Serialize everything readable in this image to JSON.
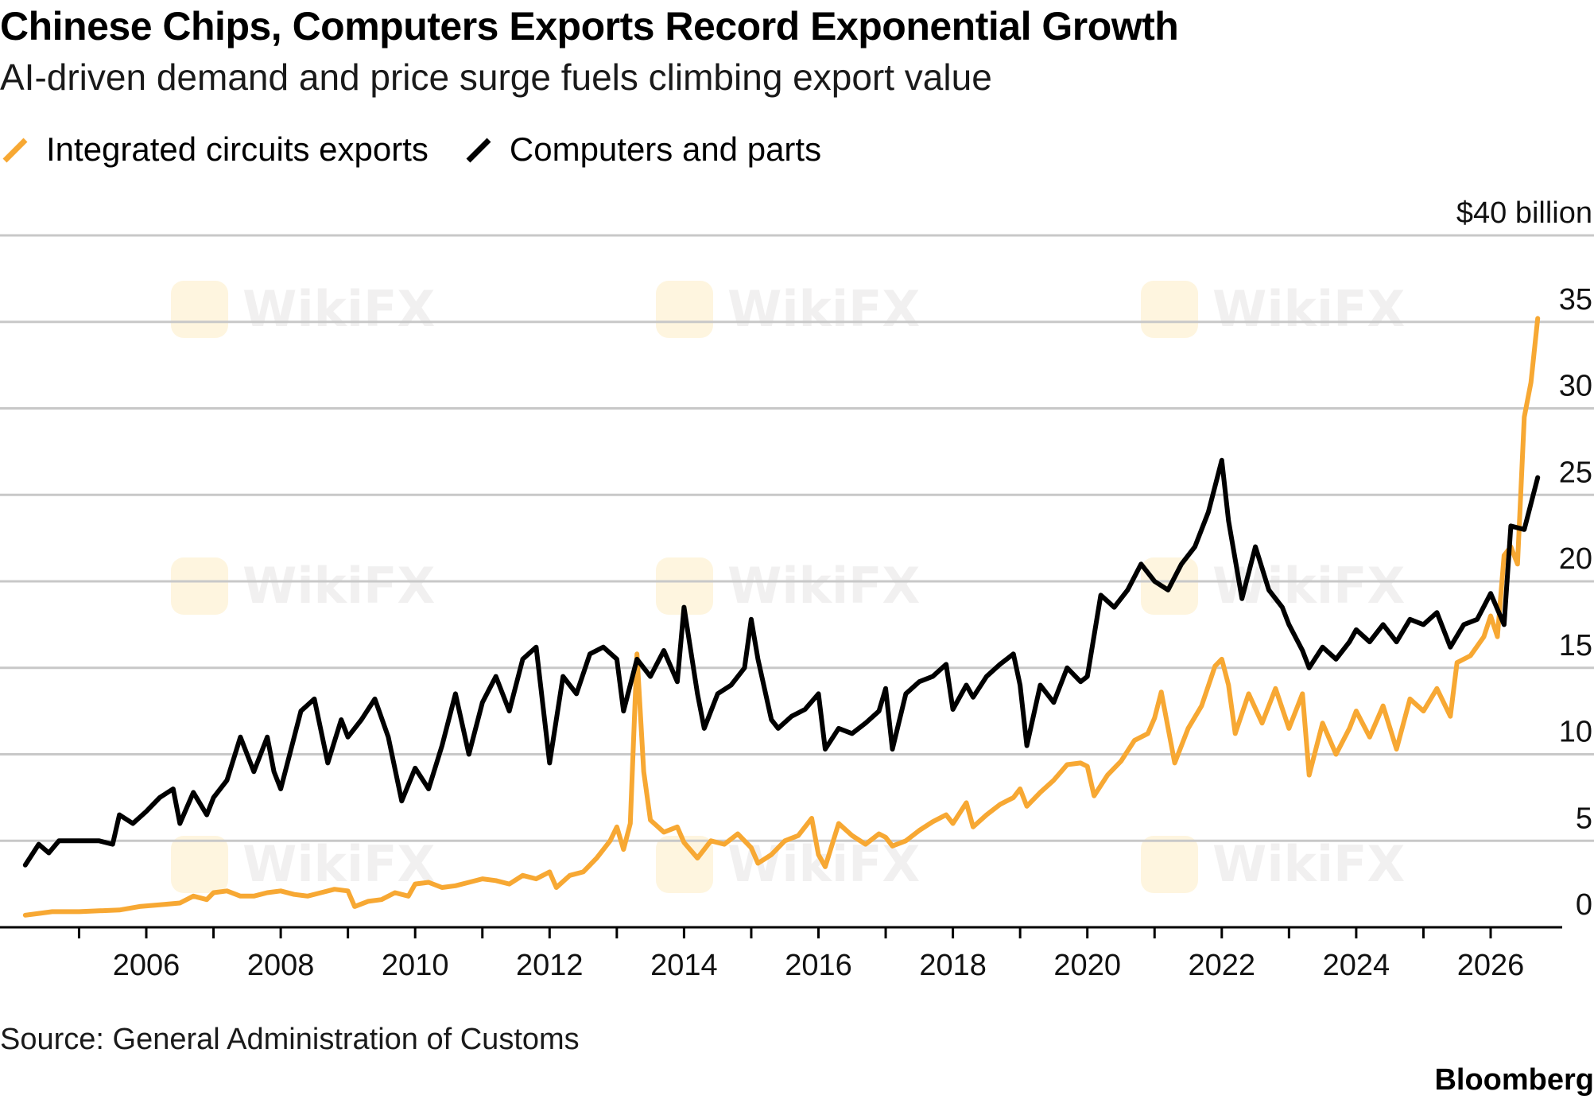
{
  "header": {
    "title": "Chinese Chips, Computers Exports Record Exponential Growth",
    "subtitle": "AI-driven demand and price surge fuels climbing export value"
  },
  "legend": [
    {
      "label": "Integrated circuits exports",
      "color": "#f7a833"
    },
    {
      "label": "Computers and parts",
      "color": "#000000"
    }
  ],
  "footer": {
    "source": "Source: General Administration of Customs",
    "brand": "Bloomberg"
  },
  "watermark": {
    "text": "WikiFX"
  },
  "chart_data": {
    "type": "line",
    "xlim": [
      2004.0,
      2027.0
    ],
    "ylim": [
      0,
      40
    ],
    "y_ticks": [
      0,
      5,
      10,
      15,
      20,
      25,
      30,
      35,
      40
    ],
    "y_tick_labels": [
      "0",
      "5",
      "10",
      "15",
      "20",
      "25",
      "30",
      "35",
      "$40 billion"
    ],
    "x_tick_labels": [
      "2006",
      "2008",
      "2010",
      "2012",
      "2014",
      "2016",
      "2018",
      "2020",
      "2022",
      "2024",
      "2026"
    ],
    "x_tick_years": [
      2006,
      2008,
      2010,
      2012,
      2014,
      2016,
      2018,
      2020,
      2022,
      2024,
      2026
    ],
    "grid": "horizontal",
    "legend_position": "top-left",
    "series": [
      {
        "name": "Integrated circuits exports",
        "color": "#f7a833",
        "points": [
          [
            2004.2,
            0.7
          ],
          [
            2004.4,
            0.8
          ],
          [
            2004.6,
            0.9
          ],
          [
            2004.8,
            0.9
          ],
          [
            2005.0,
            0.9
          ],
          [
            2005.3,
            0.95
          ],
          [
            2005.6,
            1.0
          ],
          [
            2005.9,
            1.2
          ],
          [
            2006.2,
            1.3
          ],
          [
            2006.5,
            1.4
          ],
          [
            2006.7,
            1.8
          ],
          [
            2006.9,
            1.6
          ],
          [
            2007.0,
            2.0
          ],
          [
            2007.2,
            2.1
          ],
          [
            2007.4,
            1.8
          ],
          [
            2007.6,
            1.8
          ],
          [
            2007.8,
            2.0
          ],
          [
            2008.0,
            2.1
          ],
          [
            2008.2,
            1.9
          ],
          [
            2008.4,
            1.8
          ],
          [
            2008.6,
            2.0
          ],
          [
            2008.8,
            2.2
          ],
          [
            2009.0,
            2.1
          ],
          [
            2009.1,
            1.2
          ],
          [
            2009.3,
            1.5
          ],
          [
            2009.5,
            1.6
          ],
          [
            2009.7,
            2.0
          ],
          [
            2009.9,
            1.8
          ],
          [
            2010.0,
            2.5
          ],
          [
            2010.2,
            2.6
          ],
          [
            2010.4,
            2.3
          ],
          [
            2010.6,
            2.4
          ],
          [
            2010.8,
            2.6
          ],
          [
            2011.0,
            2.8
          ],
          [
            2011.2,
            2.7
          ],
          [
            2011.4,
            2.5
          ],
          [
            2011.6,
            3.0
          ],
          [
            2011.8,
            2.8
          ],
          [
            2012.0,
            3.2
          ],
          [
            2012.1,
            2.3
          ],
          [
            2012.3,
            3.0
          ],
          [
            2012.5,
            3.2
          ],
          [
            2012.7,
            4.0
          ],
          [
            2012.9,
            5.0
          ],
          [
            2013.0,
            5.8
          ],
          [
            2013.1,
            4.5
          ],
          [
            2013.2,
            6.0
          ],
          [
            2013.3,
            15.8
          ],
          [
            2013.4,
            9.0
          ],
          [
            2013.5,
            6.2
          ],
          [
            2013.7,
            5.5
          ],
          [
            2013.9,
            5.8
          ],
          [
            2014.0,
            4.9
          ],
          [
            2014.2,
            4.0
          ],
          [
            2014.4,
            5.0
          ],
          [
            2014.6,
            4.8
          ],
          [
            2014.8,
            5.4
          ],
          [
            2015.0,
            4.6
          ],
          [
            2015.1,
            3.7
          ],
          [
            2015.3,
            4.2
          ],
          [
            2015.5,
            5.0
          ],
          [
            2015.7,
            5.3
          ],
          [
            2015.9,
            6.3
          ],
          [
            2016.0,
            4.2
          ],
          [
            2016.1,
            3.5
          ],
          [
            2016.3,
            6.0
          ],
          [
            2016.5,
            5.3
          ],
          [
            2016.7,
            4.8
          ],
          [
            2016.9,
            5.4
          ],
          [
            2017.0,
            5.2
          ],
          [
            2017.1,
            4.7
          ],
          [
            2017.3,
            5.0
          ],
          [
            2017.5,
            5.6
          ],
          [
            2017.7,
            6.1
          ],
          [
            2017.9,
            6.5
          ],
          [
            2018.0,
            6.0
          ],
          [
            2018.2,
            7.2
          ],
          [
            2018.3,
            5.8
          ],
          [
            2018.5,
            6.5
          ],
          [
            2018.7,
            7.1
          ],
          [
            2018.9,
            7.5
          ],
          [
            2019.0,
            8.0
          ],
          [
            2019.1,
            7.0
          ],
          [
            2019.3,
            7.8
          ],
          [
            2019.5,
            8.5
          ],
          [
            2019.7,
            9.4
          ],
          [
            2019.9,
            9.5
          ],
          [
            2020.0,
            9.3
          ],
          [
            2020.1,
            7.6
          ],
          [
            2020.3,
            8.8
          ],
          [
            2020.5,
            9.6
          ],
          [
            2020.7,
            10.8
          ],
          [
            2020.9,
            11.2
          ],
          [
            2021.0,
            12.1
          ],
          [
            2021.1,
            13.6
          ],
          [
            2021.3,
            9.5
          ],
          [
            2021.5,
            11.5
          ],
          [
            2021.7,
            12.8
          ],
          [
            2021.9,
            15.1
          ],
          [
            2022.0,
            15.5
          ],
          [
            2022.1,
            14.0
          ],
          [
            2022.2,
            11.2
          ],
          [
            2022.4,
            13.5
          ],
          [
            2022.6,
            11.8
          ],
          [
            2022.8,
            13.8
          ],
          [
            2023.0,
            11.5
          ],
          [
            2023.2,
            13.5
          ],
          [
            2023.3,
            8.8
          ],
          [
            2023.5,
            11.8
          ],
          [
            2023.7,
            10.0
          ],
          [
            2023.9,
            11.5
          ],
          [
            2024.0,
            12.5
          ],
          [
            2024.2,
            11.0
          ],
          [
            2024.4,
            12.8
          ],
          [
            2024.6,
            10.3
          ],
          [
            2024.8,
            13.2
          ],
          [
            2025.0,
            12.5
          ],
          [
            2025.2,
            13.8
          ],
          [
            2025.4,
            12.2
          ],
          [
            2025.5,
            15.3
          ],
          [
            2025.7,
            15.7
          ],
          [
            2025.9,
            16.8
          ],
          [
            2026.0,
            18.0
          ],
          [
            2026.1,
            16.8
          ],
          [
            2026.2,
            21.5
          ],
          [
            2026.3,
            22.0
          ],
          [
            2026.4,
            21.0
          ],
          [
            2026.5,
            29.5
          ],
          [
            2026.6,
            31.5
          ],
          [
            2026.7,
            35.2
          ]
        ]
      },
      {
        "name": "Computers and parts",
        "color": "#000000",
        "points": [
          [
            2004.2,
            3.6
          ],
          [
            2004.4,
            4.8
          ],
          [
            2004.55,
            4.3
          ],
          [
            2004.7,
            5.0
          ],
          [
            2005.0,
            5.0
          ],
          [
            2005.3,
            5.0
          ],
          [
            2005.5,
            4.8
          ],
          [
            2005.6,
            6.5
          ],
          [
            2005.8,
            6.0
          ],
          [
            2006.0,
            6.7
          ],
          [
            2006.2,
            7.5
          ],
          [
            2006.4,
            8.0
          ],
          [
            2006.5,
            6.0
          ],
          [
            2006.7,
            7.8
          ],
          [
            2006.9,
            6.5
          ],
          [
            2007.0,
            7.5
          ],
          [
            2007.2,
            8.5
          ],
          [
            2007.4,
            11.0
          ],
          [
            2007.6,
            9.0
          ],
          [
            2007.8,
            11.0
          ],
          [
            2007.9,
            9.0
          ],
          [
            2008.0,
            8.0
          ],
          [
            2008.1,
            9.5
          ],
          [
            2008.3,
            12.5
          ],
          [
            2008.5,
            13.2
          ],
          [
            2008.7,
            9.5
          ],
          [
            2008.9,
            12.0
          ],
          [
            2009.0,
            11.0
          ],
          [
            2009.2,
            12.0
          ],
          [
            2009.4,
            13.2
          ],
          [
            2009.6,
            11.0
          ],
          [
            2009.8,
            7.3
          ],
          [
            2010.0,
            9.2
          ],
          [
            2010.2,
            8.0
          ],
          [
            2010.4,
            10.5
          ],
          [
            2010.6,
            13.5
          ],
          [
            2010.8,
            10.0
          ],
          [
            2011.0,
            13.0
          ],
          [
            2011.2,
            14.5
          ],
          [
            2011.4,
            12.5
          ],
          [
            2011.6,
            15.5
          ],
          [
            2011.8,
            16.2
          ],
          [
            2012.0,
            9.5
          ],
          [
            2012.2,
            14.5
          ],
          [
            2012.4,
            13.5
          ],
          [
            2012.6,
            15.8
          ],
          [
            2012.8,
            16.2
          ],
          [
            2013.0,
            15.5
          ],
          [
            2013.1,
            12.5
          ],
          [
            2013.3,
            15.5
          ],
          [
            2013.5,
            14.5
          ],
          [
            2013.7,
            16.0
          ],
          [
            2013.9,
            14.2
          ],
          [
            2014.0,
            18.5
          ],
          [
            2014.2,
            13.5
          ],
          [
            2014.3,
            11.5
          ],
          [
            2014.5,
            13.5
          ],
          [
            2014.7,
            14.0
          ],
          [
            2014.9,
            15.0
          ],
          [
            2015.0,
            17.8
          ],
          [
            2015.1,
            15.5
          ],
          [
            2015.3,
            12.0
          ],
          [
            2015.4,
            11.5
          ],
          [
            2015.6,
            12.2
          ],
          [
            2015.8,
            12.6
          ],
          [
            2016.0,
            13.5
          ],
          [
            2016.1,
            10.3
          ],
          [
            2016.3,
            11.5
          ],
          [
            2016.5,
            11.2
          ],
          [
            2016.7,
            11.8
          ],
          [
            2016.9,
            12.5
          ],
          [
            2017.0,
            13.8
          ],
          [
            2017.1,
            10.3
          ],
          [
            2017.3,
            13.5
          ],
          [
            2017.5,
            14.2
          ],
          [
            2017.7,
            14.5
          ],
          [
            2017.9,
            15.2
          ],
          [
            2018.0,
            12.6
          ],
          [
            2018.2,
            14.0
          ],
          [
            2018.3,
            13.3
          ],
          [
            2018.5,
            14.5
          ],
          [
            2018.7,
            15.2
          ],
          [
            2018.9,
            15.8
          ],
          [
            2019.0,
            14.0
          ],
          [
            2019.1,
            10.5
          ],
          [
            2019.3,
            14.0
          ],
          [
            2019.5,
            13.0
          ],
          [
            2019.7,
            15.0
          ],
          [
            2019.9,
            14.2
          ],
          [
            2020.0,
            14.5
          ],
          [
            2020.2,
            19.2
          ],
          [
            2020.4,
            18.5
          ],
          [
            2020.6,
            19.5
          ],
          [
            2020.8,
            21.0
          ],
          [
            2021.0,
            20.0
          ],
          [
            2021.2,
            19.5
          ],
          [
            2021.4,
            21.0
          ],
          [
            2021.6,
            22.0
          ],
          [
            2021.8,
            24.0
          ],
          [
            2022.0,
            27.0
          ],
          [
            2022.1,
            23.5
          ],
          [
            2022.3,
            19.0
          ],
          [
            2022.5,
            22.0
          ],
          [
            2022.7,
            19.5
          ],
          [
            2022.9,
            18.5
          ],
          [
            2023.0,
            17.5
          ],
          [
            2023.2,
            16.0
          ],
          [
            2023.3,
            15.0
          ],
          [
            2023.5,
            16.2
          ],
          [
            2023.7,
            15.5
          ],
          [
            2023.9,
            16.5
          ],
          [
            2024.0,
            17.2
          ],
          [
            2024.2,
            16.5
          ],
          [
            2024.4,
            17.5
          ],
          [
            2024.6,
            16.5
          ],
          [
            2024.8,
            17.8
          ],
          [
            2025.0,
            17.5
          ],
          [
            2025.2,
            18.2
          ],
          [
            2025.4,
            16.2
          ],
          [
            2025.6,
            17.5
          ],
          [
            2025.8,
            17.8
          ],
          [
            2026.0,
            19.3
          ],
          [
            2026.2,
            17.5
          ],
          [
            2026.3,
            23.2
          ],
          [
            2026.5,
            23.0
          ],
          [
            2026.7,
            26.0
          ]
        ]
      }
    ]
  }
}
